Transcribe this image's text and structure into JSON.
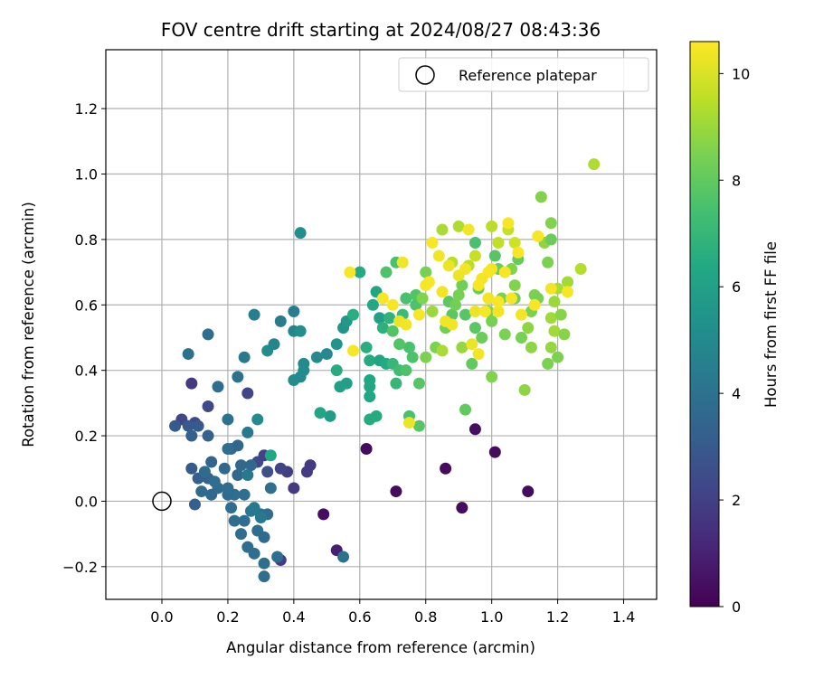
{
  "chart_data": {
    "type": "scatter",
    "title": "FOV centre drift starting at 2024/08/27 08:43:36",
    "xlabel": "Angular distance from reference (arcmin)",
    "ylabel": "Rotation from reference (arcmin)",
    "xlim": [
      -0.17,
      1.5
    ],
    "ylim": [
      -0.3,
      1.38
    ],
    "xticks": [
      0.0,
      0.2,
      0.4,
      0.6,
      0.8,
      1.0,
      1.2,
      1.4
    ],
    "xtick_labels": [
      "0.0",
      "0.2",
      "0.4",
      "0.6",
      "0.8",
      "1.0",
      "1.2",
      "1.4"
    ],
    "yticks": [
      -0.2,
      0.0,
      0.2,
      0.4,
      0.6,
      0.8,
      1.0,
      1.2
    ],
    "ytick_labels": [
      "−0.2",
      "0.0",
      "0.2",
      "0.4",
      "0.6",
      "0.8",
      "1.0",
      "1.2"
    ],
    "grid": true,
    "legend": {
      "location": "top-right",
      "entries": [
        "Reference platepar"
      ]
    },
    "colorbar": {
      "label": "Hours from first FF file",
      "colormap": "viridis",
      "range": [
        0,
        10.6
      ],
      "ticks": [
        0,
        2,
        4,
        6,
        8,
        10
      ],
      "tick_labels": [
        "0",
        "2",
        "4",
        "6",
        "8",
        "10"
      ]
    },
    "reference_point": {
      "x": 0.0,
      "y": 0.0
    },
    "points": [
      [
        0.62,
        0.16,
        0.3
      ],
      [
        0.71,
        0.03,
        0.3
      ],
      [
        0.86,
        0.1,
        0.3
      ],
      [
        0.91,
        -0.02,
        0.3
      ],
      [
        0.95,
        0.22,
        0.4
      ],
      [
        1.01,
        0.15,
        0.3
      ],
      [
        1.11,
        0.03,
        0.3
      ],
      [
        0.49,
        -0.04,
        0.4
      ],
      [
        0.53,
        -0.15,
        0.9
      ],
      [
        0.09,
        0.36,
        1.8
      ],
      [
        0.4,
        0.04,
        1.8
      ],
      [
        0.45,
        0.11,
        1.8
      ],
      [
        0.44,
        0.09,
        1.8
      ],
      [
        0.38,
        0.09,
        1.9
      ],
      [
        0.36,
        -0.18,
        1.9
      ],
      [
        0.26,
        0.33,
        2.2
      ],
      [
        0.14,
        0.29,
        2.3
      ],
      [
        0.06,
        0.25,
        2.2
      ],
      [
        0.1,
        0.24,
        2.4
      ],
      [
        0.29,
        0.12,
        2.3
      ],
      [
        0.31,
        0.14,
        2.1
      ],
      [
        0.36,
        0.1,
        2.1
      ],
      [
        0.32,
        0.09,
        2.6
      ],
      [
        0.04,
        0.23,
        3.0
      ],
      [
        0.08,
        0.23,
        3.0
      ],
      [
        0.11,
        0.23,
        3.0
      ],
      [
        0.09,
        0.1,
        3.0
      ],
      [
        0.11,
        0.07,
        3.2
      ],
      [
        0.14,
        0.07,
        3.4
      ],
      [
        0.15,
        0.12,
        3.4
      ],
      [
        0.21,
        0.16,
        3.4
      ],
      [
        0.23,
        0.17,
        3.5
      ],
      [
        0.19,
        0.1,
        3.6
      ],
      [
        0.23,
        0.08,
        3.6
      ],
      [
        0.24,
        0.11,
        3.6
      ],
      [
        0.27,
        0.11,
        3.6
      ],
      [
        0.22,
        0.02,
        3.8
      ],
      [
        0.25,
        0.02,
        3.8
      ],
      [
        0.21,
        -0.02,
        3.8
      ],
      [
        0.25,
        -0.06,
        3.8
      ],
      [
        0.29,
        -0.09,
        3.8
      ],
      [
        0.31,
        -0.11,
        3.7
      ],
      [
        0.32,
        -0.04,
        3.8
      ],
      [
        0.3,
        -0.04,
        3.8
      ],
      [
        0.33,
        0.04,
        3.9
      ],
      [
        0.1,
        -0.01,
        3.2
      ],
      [
        0.15,
        0.02,
        3.6
      ],
      [
        0.17,
        0.04,
        3.7
      ],
      [
        0.2,
        0.02,
        3.7
      ],
      [
        0.24,
        -0.1,
        3.8
      ],
      [
        0.26,
        -0.14,
        3.8
      ],
      [
        0.28,
        -0.16,
        3.8
      ],
      [
        0.31,
        -0.19,
        3.8
      ],
      [
        0.31,
        -0.23,
        3.8
      ],
      [
        0.35,
        -0.17,
        3.8
      ],
      [
        0.22,
        -0.06,
        3.8
      ],
      [
        0.2,
        0.04,
        3.8
      ],
      [
        0.16,
        0.06,
        3.8
      ],
      [
        0.12,
        0.03,
        3.7
      ],
      [
        0.13,
        0.09,
        3.7
      ],
      [
        0.09,
        0.2,
        3.2
      ],
      [
        0.14,
        0.2,
        3.3
      ],
      [
        0.17,
        0.35,
        3.8
      ],
      [
        0.2,
        0.16,
        3.8
      ],
      [
        0.2,
        0.25,
        4.0
      ],
      [
        0.23,
        0.38,
        4.0
      ],
      [
        0.25,
        0.44,
        4.3
      ],
      [
        0.26,
        0.21,
        4.3
      ],
      [
        0.26,
        0.08,
        4.3
      ],
      [
        0.27,
        -0.03,
        4.3
      ],
      [
        0.28,
        -0.02,
        4.3
      ],
      [
        0.3,
        -0.05,
        4.3
      ],
      [
        0.08,
        0.45,
        3.9
      ],
      [
        0.14,
        0.51,
        3.8
      ],
      [
        0.28,
        0.57,
        4.5
      ],
      [
        0.32,
        0.46,
        5.1
      ],
      [
        0.34,
        0.48,
        4.8
      ],
      [
        0.36,
        0.55,
        4.4
      ],
      [
        0.4,
        0.58,
        4.5
      ],
      [
        0.4,
        0.52,
        4.8
      ],
      [
        0.42,
        0.82,
        5.2
      ],
      [
        0.43,
        0.42,
        5.0
      ],
      [
        0.43,
        0.4,
        5.1
      ],
      [
        0.4,
        0.37,
        5.1
      ],
      [
        0.42,
        0.38,
        5.0
      ],
      [
        0.42,
        0.52,
        5.2
      ],
      [
        0.47,
        0.44,
        5.0
      ],
      [
        0.5,
        0.45,
        5.0
      ],
      [
        0.29,
        0.25,
        5.0
      ],
      [
        0.55,
        -0.17,
        4.0
      ],
      [
        0.33,
        0.14,
        6.3
      ],
      [
        0.53,
        0.48,
        5.5
      ],
      [
        0.55,
        0.53,
        5.5
      ],
      [
        0.56,
        0.55,
        5.6
      ],
      [
        0.54,
        0.35,
        6.0
      ],
      [
        0.56,
        0.36,
        6.0
      ],
      [
        0.51,
        0.26,
        5.8
      ],
      [
        0.48,
        0.27,
        6.2
      ],
      [
        0.53,
        0.4,
        6.5
      ],
      [
        0.58,
        0.57,
        6.6
      ],
      [
        0.62,
        0.47,
        6.6
      ],
      [
        0.63,
        0.43,
        6.5
      ],
      [
        0.63,
        0.37,
        6.3
      ],
      [
        0.63,
        0.35,
        6.3
      ],
      [
        0.63,
        0.32,
        6.3
      ],
      [
        0.63,
        0.25,
        6.5
      ],
      [
        0.65,
        0.26,
        6.5
      ],
      [
        0.6,
        0.7,
        6.4
      ],
      [
        0.65,
        0.64,
        6.2
      ],
      [
        0.66,
        0.56,
        6.0
      ],
      [
        0.66,
        0.43,
        6.2
      ],
      [
        0.68,
        0.42,
        6.4
      ],
      [
        0.69,
        0.56,
        6.5
      ],
      [
        0.64,
        0.6,
        6.3
      ],
      [
        0.67,
        0.53,
        6.7
      ],
      [
        0.69,
        0.56,
        6.8
      ],
      [
        0.7,
        0.42,
        7.0
      ],
      [
        0.71,
        0.36,
        7.0
      ],
      [
        0.72,
        0.4,
        7.3
      ],
      [
        0.73,
        0.57,
        7.2
      ],
      [
        0.74,
        0.4,
        7.6
      ],
      [
        0.75,
        0.47,
        7.5
      ],
      [
        0.76,
        0.44,
        7.6
      ],
      [
        0.77,
        0.6,
        7.6
      ],
      [
        0.74,
        0.62,
        7.5
      ],
      [
        0.77,
        0.63,
        7.7
      ],
      [
        0.78,
        0.36,
        7.8
      ],
      [
        0.78,
        0.23,
        7.8
      ],
      [
        0.75,
        0.26,
        7.5
      ],
      [
        0.72,
        0.48,
        7.7
      ],
      [
        0.7,
        0.52,
        7.7
      ],
      [
        0.68,
        0.7,
        7.6
      ],
      [
        0.71,
        0.73,
        7.5
      ],
      [
        0.8,
        0.44,
        8.5
      ],
      [
        0.83,
        0.47,
        8.5
      ],
      [
        0.86,
        0.53,
        8.3
      ],
      [
        0.87,
        0.61,
        7.9
      ],
      [
        0.88,
        0.57,
        7.9
      ],
      [
        0.89,
        0.6,
        8.3
      ],
      [
        0.91,
        0.66,
        8.3
      ],
      [
        0.92,
        0.28,
        8.0
      ],
      [
        0.94,
        0.42,
        8.0
      ],
      [
        0.95,
        0.53,
        7.9
      ],
      [
        0.95,
        0.79,
        7.5
      ],
      [
        0.96,
        0.65,
        8.2
      ],
      [
        0.9,
        0.63,
        8.4
      ],
      [
        0.92,
        0.57,
        7.8
      ],
      [
        0.97,
        0.5,
        8.2
      ],
      [
        0.99,
        0.58,
        8.5
      ],
      [
        1.0,
        0.38,
        8.6
      ],
      [
        1.0,
        0.55,
        8.4
      ],
      [
        1.01,
        0.75,
        7.8
      ],
      [
        1.02,
        0.71,
        8.2
      ],
      [
        1.03,
        0.62,
        8.5
      ],
      [
        1.04,
        0.51,
        8.5
      ],
      [
        1.06,
        0.71,
        8.6
      ],
      [
        1.07,
        0.62,
        8.3
      ],
      [
        1.07,
        0.66,
        8.6
      ],
      [
        1.08,
        0.74,
        8.1
      ],
      [
        1.09,
        0.5,
        8.4
      ],
      [
        1.1,
        0.34,
        8.8
      ],
      [
        1.11,
        0.53,
        8.8
      ],
      [
        1.12,
        0.47,
        8.8
      ],
      [
        1.12,
        0.58,
        8.5
      ],
      [
        1.13,
        0.63,
        8.5
      ],
      [
        1.14,
        0.62,
        8.4
      ],
      [
        1.15,
        0.93,
        8.6
      ],
      [
        1.16,
        0.79,
        8.8
      ],
      [
        1.17,
        0.73,
        8.5
      ],
      [
        1.17,
        0.42,
        8.5
      ],
      [
        1.18,
        0.85,
        8.6
      ],
      [
        1.18,
        0.8,
        8.2
      ],
      [
        1.18,
        0.56,
        9.1
      ],
      [
        1.18,
        0.47,
        8.9
      ],
      [
        1.19,
        0.52,
        9.1
      ],
      [
        1.19,
        0.61,
        9.0
      ],
      [
        1.2,
        0.44,
        8.5
      ],
      [
        1.2,
        0.65,
        9.2
      ],
      [
        1.21,
        0.57,
        8.7
      ],
      [
        1.22,
        0.51,
        8.7
      ],
      [
        1.23,
        0.67,
        9.1
      ],
      [
        1.27,
        0.71,
        9.4
      ],
      [
        1.31,
        1.03,
        9.3
      ],
      [
        0.85,
        0.83,
        9.2
      ],
      [
        0.9,
        0.84,
        9.3
      ],
      [
        0.93,
        0.72,
        9.5
      ],
      [
        0.95,
        0.75,
        9.7
      ],
      [
        1.0,
        0.84,
        9.5
      ],
      [
        1.02,
        0.79,
        9.6
      ],
      [
        1.05,
        0.83,
        9.7
      ],
      [
        1.07,
        0.79,
        9.8
      ],
      [
        0.88,
        0.73,
        9.5
      ],
      [
        0.85,
        0.46,
        9.2
      ],
      [
        0.91,
        0.47,
        8.9
      ],
      [
        0.8,
        0.7,
        8.4
      ],
      [
        0.79,
        0.62,
        8.6
      ],
      [
        0.82,
        0.58,
        9.0
      ],
      [
        0.57,
        0.7,
        10.5
      ],
      [
        0.58,
        0.46,
        10.5
      ],
      [
        0.67,
        0.62,
        10.5
      ],
      [
        0.7,
        0.6,
        10.5
      ],
      [
        0.72,
        0.55,
        10.3
      ],
      [
        0.73,
        0.73,
        10.4
      ],
      [
        0.74,
        0.54,
        10.4
      ],
      [
        0.75,
        0.24,
        10.3
      ],
      [
        0.78,
        0.57,
        10.5
      ],
      [
        0.8,
        0.66,
        10.5
      ],
      [
        0.82,
        0.79,
        10.5
      ],
      [
        0.84,
        0.75,
        10.4
      ],
      [
        0.85,
        0.64,
        10.4
      ],
      [
        0.86,
        0.55,
        10.4
      ],
      [
        0.87,
        0.72,
        10.3
      ],
      [
        0.88,
        0.54,
        10.4
      ],
      [
        0.9,
        0.69,
        10.3
      ],
      [
        0.92,
        0.71,
        10.4
      ],
      [
        0.93,
        0.83,
        10.4
      ],
      [
        0.94,
        0.48,
        10.3
      ],
      [
        0.95,
        0.58,
        10.3
      ],
      [
        0.96,
        0.45,
        10.4
      ],
      [
        0.97,
        0.68,
        10.4
      ],
      [
        0.98,
        0.58,
        10.5
      ],
      [
        0.99,
        0.62,
        10.4
      ],
      [
        1.0,
        0.71,
        10.4
      ],
      [
        1.02,
        0.58,
        10.4
      ],
      [
        1.04,
        0.7,
        10.5
      ],
      [
        1.05,
        0.85,
        10.5
      ],
      [
        1.06,
        0.62,
        10.5
      ],
      [
        1.08,
        0.76,
        10.5
      ],
      [
        1.09,
        0.57,
        10.4
      ],
      [
        1.13,
        0.6,
        10.5
      ],
      [
        1.14,
        0.81,
        10.5
      ],
      [
        1.18,
        0.65,
        10.4
      ],
      [
        1.23,
        0.64,
        10.5
      ],
      [
        0.81,
        0.67,
        10.5
      ],
      [
        0.96,
        0.66,
        10.5
      ],
      [
        0.99,
        0.7,
        10.5
      ],
      [
        1.02,
        0.61,
        10.5
      ]
    ]
  }
}
